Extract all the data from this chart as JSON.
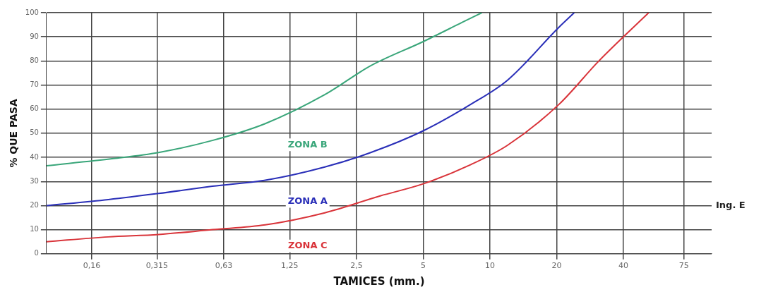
{
  "chart_data": {
    "type": "line",
    "xlabel": "TAMICES (mm.)",
    "ylabel": "% QUE PASA",
    "log": "x",
    "grid": true,
    "marker": "none",
    "legend": false,
    "xlim": [
      0.1,
      100
    ],
    "xticks": [
      {
        "value": 0.16,
        "label": "0,16"
      },
      {
        "value": 0.315,
        "label": "0,315"
      },
      {
        "value": 0.63,
        "label": "0,63"
      },
      {
        "value": 1.25,
        "label": "1,25"
      },
      {
        "value": 2.5,
        "label": "2,5"
      },
      5,
      10,
      20,
      40,
      75
    ],
    "ylim": [
      0,
      100
    ],
    "yticks": [
      0,
      10,
      20,
      30,
      40,
      50,
      60,
      70,
      80,
      90,
      100
    ],
    "series": [
      {
        "name": "ZONA B",
        "color": "#3aa67a",
        "x": [
          0.1,
          0.2,
          0.32,
          0.56,
          0.97,
          1.8,
          2.9,
          5,
          7.5,
          9.2
        ],
        "values": [
          36.5,
          39.5,
          42,
          47,
          54,
          66,
          78,
          88,
          96,
          100
        ]
      },
      {
        "name": "ZONA A",
        "color": "#2a2fb8",
        "x": [
          0.1,
          0.19,
          0.32,
          0.56,
          0.97,
          1.8,
          2.9,
          5,
          8.2,
          12,
          20.5,
          24
        ],
        "values": [
          20,
          22.5,
          25,
          28,
          30.5,
          36,
          42,
          51,
          62,
          72,
          94,
          100
        ]
      },
      {
        "name": "ZONA C",
        "color": "#d9343a",
        "x": [
          0.1,
          0.19,
          0.32,
          0.56,
          0.97,
          1.8,
          3.2,
          5,
          8.2,
          12,
          20.5,
          31,
          52
        ],
        "values": [
          5,
          7,
          8,
          10,
          12,
          17,
          24,
          29,
          37,
          45,
          62,
          80,
          100
        ]
      }
    ],
    "annotations": [
      "Ing. E"
    ]
  }
}
